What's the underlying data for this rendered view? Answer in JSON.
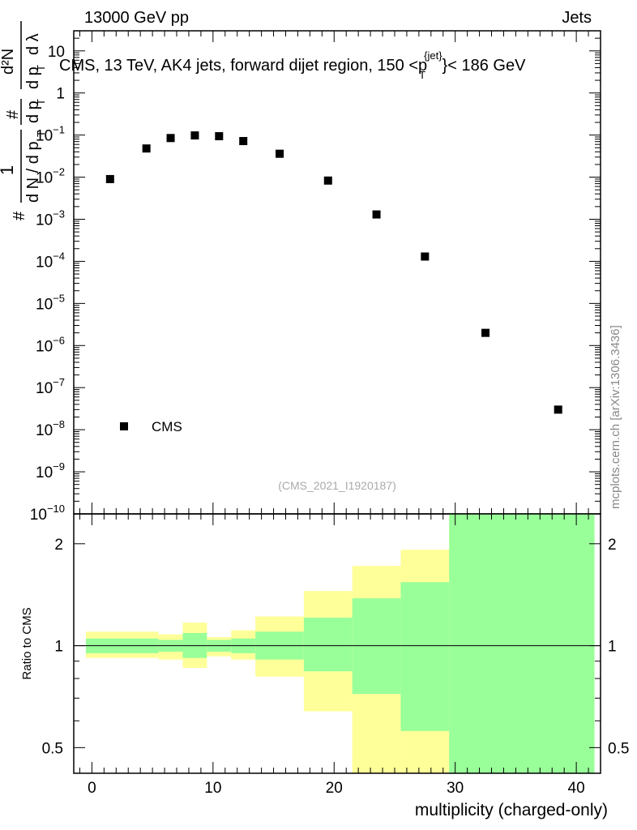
{
  "header": {
    "left": "13000 GeV pp",
    "right": "Jets"
  },
  "side_note": "mcplots.cern.ch [arXiv:1306.3436]",
  "analysis_id": "(CMS_2021_I1920187)",
  "colors": {
    "data_marker": "#000000",
    "band_inner": "#99ff99",
    "band_outer": "#ffff99",
    "side_note": "#888888"
  },
  "chart_data": [
    {
      "type": "scatter",
      "title": "CMS, 13 TeV, AK4 jets, forward dijet region, 150 <p_T^{jet}< 186 GeV",
      "title_parts": {
        "main": "CMS, 13 TeV, AK4 jets, forward dijet region, 150 <p",
        "sub": "T",
        "sup": "{jet}",
        "end": "}< 186 GeV"
      },
      "ylabel": "# 1/dN/dp_T # d²N/dp_T dλ",
      "ylabel_parts": {
        "hash": "#",
        "one": "1",
        "dN": "d N / d p",
        "T": "T",
        "d2N": "d²N",
        "dpT": "d p",
        "dl": "d λ"
      },
      "y_scale": "log",
      "ylim": [
        1e-10,
        30
      ],
      "xlim": [
        -1.5,
        42
      ],
      "y_tick_labels": [
        {
          "value": 10,
          "text": "10"
        },
        {
          "value": 1,
          "text": "1"
        },
        {
          "value": 0.1,
          "base": "10",
          "exp": "−1"
        },
        {
          "value": 0.01,
          "base": "10",
          "exp": "−2"
        },
        {
          "value": 0.001,
          "base": "10",
          "exp": "−3"
        },
        {
          "value": 0.0001,
          "base": "10",
          "exp": "−4"
        },
        {
          "value": 1e-05,
          "base": "10",
          "exp": "−5"
        },
        {
          "value": 1e-06,
          "base": "10",
          "exp": "−6"
        },
        {
          "value": 1e-07,
          "base": "10",
          "exp": "−7"
        },
        {
          "value": 1e-08,
          "base": "10",
          "exp": "−8"
        },
        {
          "value": 1e-09,
          "base": "10",
          "exp": "−9"
        },
        {
          "value": 1e-10,
          "base": "10",
          "exp": "−10"
        }
      ],
      "legend": {
        "placement": "bottom-left",
        "entries": [
          "CMS"
        ]
      },
      "series": [
        {
          "name": "CMS",
          "marker": "square",
          "x": [
            1.5,
            4.5,
            6.5,
            8.5,
            10.5,
            12.5,
            15.5,
            19.5,
            23.5,
            27.5,
            32.5,
            38.5
          ],
          "y": [
            0.009,
            0.048,
            0.085,
            0.098,
            0.094,
            0.072,
            0.036,
            0.0083,
            0.0013,
            0.00013,
            2e-06,
            3e-08
          ]
        }
      ],
      "grid": false
    },
    {
      "type": "area",
      "ylabel": "Ratio to CMS",
      "xlabel": "multiplicity (charged-only)",
      "y_scale": "log",
      "ylim": [
        0.42,
        2.45
      ],
      "xlim": [
        -1.5,
        42
      ],
      "x_ticks": [
        0,
        10,
        20,
        30,
        40
      ],
      "y_ticks": [
        0.5,
        1,
        2
      ],
      "reference_line": 1,
      "bins": [
        {
          "x_low": -0.5,
          "x_high": 5.5,
          "inner": [
            0.95,
            1.05
          ],
          "outer": [
            0.92,
            1.1
          ]
        },
        {
          "x_low": 5.5,
          "x_high": 7.5,
          "inner": [
            0.96,
            1.04
          ],
          "outer": [
            0.91,
            1.08
          ]
        },
        {
          "x_low": 7.5,
          "x_high": 9.5,
          "inner": [
            0.92,
            1.09
          ],
          "outer": [
            0.86,
            1.17
          ]
        },
        {
          "x_low": 9.5,
          "x_high": 11.5,
          "inner": [
            0.96,
            1.04
          ],
          "outer": [
            0.93,
            1.06
          ]
        },
        {
          "x_low": 11.5,
          "x_high": 13.5,
          "inner": [
            0.95,
            1.05
          ],
          "outer": [
            0.91,
            1.11
          ]
        },
        {
          "x_low": 13.5,
          "x_high": 17.5,
          "inner": [
            0.91,
            1.1
          ],
          "outer": [
            0.81,
            1.22
          ]
        },
        {
          "x_low": 17.5,
          "x_high": 21.5,
          "inner": [
            0.84,
            1.21
          ],
          "outer": [
            0.64,
            1.45
          ]
        },
        {
          "x_low": 21.5,
          "x_high": 25.5,
          "inner": [
            0.72,
            1.38
          ],
          "outer": [
            0.42,
            1.72
          ]
        },
        {
          "x_low": 25.5,
          "x_high": 29.5,
          "inner": [
            0.56,
            1.54
          ],
          "outer": [
            0.42,
            1.92
          ]
        },
        {
          "x_low": 29.5,
          "x_high": 41.5,
          "inner": [
            0.42,
            2.45
          ],
          "outer": [
            0.42,
            2.45
          ]
        }
      ]
    }
  ]
}
